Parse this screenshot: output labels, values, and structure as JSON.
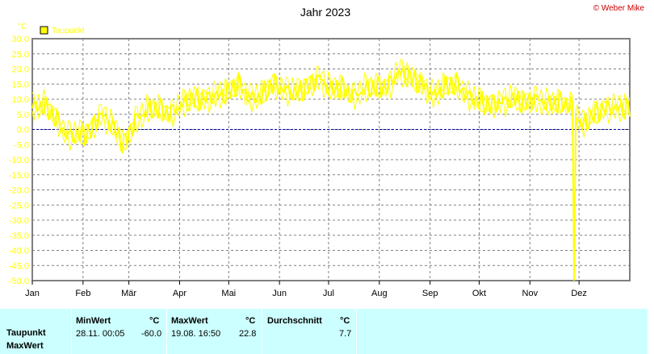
{
  "brand": {
    "copyright": "© Weber Mike",
    "color": "#cc0000"
  },
  "chart_data": {
    "type": "line",
    "title": "Jahr 2023",
    "ylabel": "°C",
    "ylim": [
      -50,
      30
    ],
    "yticks": [
      "30.0",
      "25.0",
      "20.0",
      "15.0",
      "10.0",
      "5.0",
      "0.0",
      "-5.0",
      "-10.0",
      "-15.0",
      "-20.0",
      "-25.0",
      "-30.0",
      "-35.0",
      "-40.0",
      "-45.0",
      "-50.0"
    ],
    "months": [
      "Jan",
      "Feb",
      "Mär",
      "Apr",
      "Mai",
      "Jun",
      "Jul",
      "Aug",
      "Sep",
      "Okt",
      "Nov",
      "Dez"
    ],
    "month_start_day": [
      0,
      31,
      59,
      90,
      120,
      151,
      181,
      212,
      243,
      273,
      304,
      334
    ],
    "days_in_year": 365,
    "grid": true,
    "zero_line": true,
    "legend_position": "top-left",
    "series": [
      {
        "name": "Taupunkt",
        "color": "#ffff00",
        "weekly_values": [
          7,
          8,
          4,
          -2,
          -2,
          -1,
          5,
          1,
          -5,
          3,
          6,
          7,
          5,
          8,
          10,
          10,
          11,
          12,
          15,
          10,
          11,
          15,
          13,
          12,
          14,
          17,
          13,
          14,
          11,
          13,
          14,
          14,
          19,
          17,
          15,
          11,
          14,
          15,
          11,
          9,
          8,
          9,
          10,
          9,
          10,
          8,
          9,
          8,
          1,
          5,
          7,
          7
        ],
        "min_event": {
          "day": 331,
          "value": -60.0
        }
      }
    ]
  },
  "stats": {
    "headers": {
      "min": "MinWert",
      "max": "MaxWert",
      "avg": "Durchschnitt",
      "unit": "°C"
    },
    "rows": [
      "Taupunkt",
      "MaxWert"
    ],
    "min": {
      "time": "28.11.  00:05",
      "value": "-60.0"
    },
    "max": {
      "time": "19.08.  16:50",
      "value": "22.8"
    },
    "avg": {
      "value": "7.7"
    }
  }
}
